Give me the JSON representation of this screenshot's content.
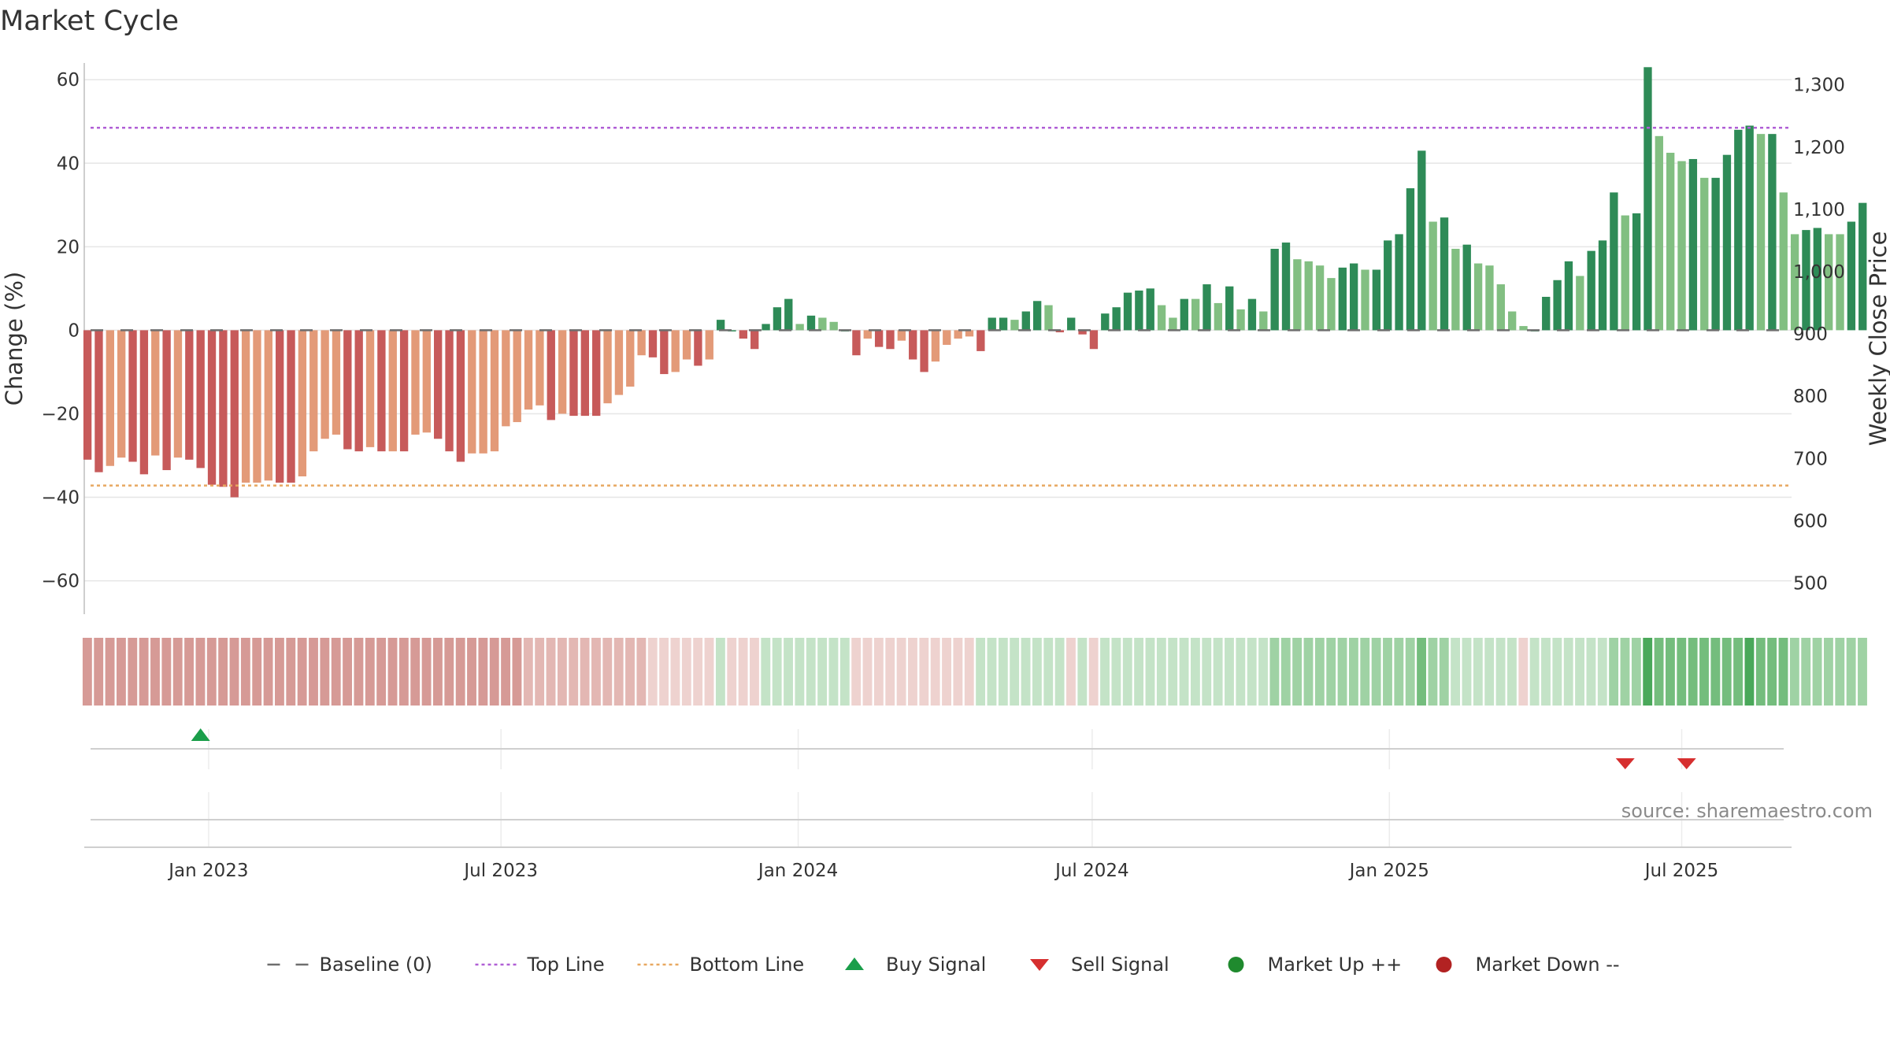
{
  "chart_data": {
    "type": "bar",
    "title": "Market Cycle",
    "ylabel": "Change (%)",
    "y2label": "Weekly Close Price",
    "ylim": [
      -68,
      64
    ],
    "yticks": [
      -60,
      -40,
      -20,
      0,
      20,
      40,
      60
    ],
    "yticks_text": [
      "−60",
      "−40",
      "−20",
      "0",
      "20",
      "40",
      "60"
    ],
    "y2lim": [
      450,
      1335
    ],
    "y2ticks": [
      500,
      600,
      700,
      800,
      900,
      1000,
      1100,
      1200,
      1300
    ],
    "y2ticks_text": [
      "500",
      "600",
      "700",
      "800",
      "900",
      "1,000",
      "1,100",
      "1,200",
      "1,300"
    ],
    "x_start": "2022-10-16",
    "x_end": "2025-09-07",
    "xticks": [
      {
        "date": "2023-01-01",
        "label": "Jan 2023"
      },
      {
        "date": "2023-07-01",
        "label": "Jul 2023"
      },
      {
        "date": "2024-01-01",
        "label": "Jan 2024"
      },
      {
        "date": "2024-07-01",
        "label": "Jul 2024"
      },
      {
        "date": "2025-01-01",
        "label": "Jan 2025"
      },
      {
        "date": "2025-07-01",
        "label": "Jul 2025"
      }
    ],
    "first_week": "2022-10-18",
    "week_step_days": 7,
    "top_line": 48.5,
    "bottom_line": -37.2,
    "baseline": 0,
    "values": [
      -31,
      -34,
      -32.5,
      -30.5,
      -31.5,
      -34.5,
      -30,
      -33.5,
      -30.5,
      -31,
      -33,
      -37,
      -37.5,
      -40,
      -36.5,
      -36.5,
      -36,
      -36.5,
      -36.5,
      -35,
      -29,
      -26,
      -25,
      -28.5,
      -29,
      -28,
      -29,
      -29,
      -29,
      -25,
      -24.5,
      -26,
      -29,
      -31.5,
      -29.5,
      -29.5,
      -29,
      -23,
      -22,
      -19,
      -18,
      -21.5,
      -20,
      -20.5,
      -20.5,
      -20.5,
      -17.5,
      -15.5,
      -13.5,
      -6,
      -6.5,
      -10.5,
      -10,
      -7,
      -8.5,
      -7,
      2.5,
      0,
      -2,
      -4.5,
      1.5,
      5.5,
      7.5,
      1.5,
      3.5,
      3,
      2,
      0,
      -6,
      -2,
      -4,
      -4.5,
      -2.5,
      -7,
      -10,
      -7.5,
      -3.5,
      -2,
      -1.5,
      -5,
      3,
      3,
      2.5,
      4.5,
      7,
      6,
      -0.5,
      3,
      -1,
      -4.5,
      4,
      5.5,
      9,
      9.5,
      10,
      6,
      3,
      7.5,
      7.5,
      11,
      6.5,
      10.5,
      5,
      7.5,
      4.5,
      19.5,
      21,
      17,
      16.5,
      15.5,
      12.5,
      15,
      16,
      14.5,
      14.5,
      21.5,
      23,
      34,
      43,
      26,
      27,
      19.5,
      20.5,
      16,
      15.5,
      11,
      4.5,
      1,
      0,
      8,
      12,
      16.5,
      13,
      19,
      21.5,
      33,
      27.5,
      28,
      63,
      46.5,
      42.5,
      40.5,
      41,
      36.5,
      36.5,
      42,
      48,
      49,
      47,
      47,
      33,
      23,
      24,
      24.5,
      23,
      23,
      26,
      30.5
    ],
    "bar_shades": [
      "d",
      "d",
      "l",
      "l",
      "d",
      "d",
      "l",
      "d",
      "l",
      "d",
      "d",
      "d",
      "d",
      "d",
      "l",
      "l",
      "l",
      "d",
      "d",
      "l",
      "l",
      "l",
      "l",
      "d",
      "d",
      "l",
      "d",
      "l",
      "d",
      "l",
      "l",
      "d",
      "d",
      "d",
      "l",
      "l",
      "l",
      "l",
      "l",
      "l",
      "l",
      "d",
      "l",
      "d",
      "d",
      "d",
      "l",
      "l",
      "l",
      "l",
      "d",
      "d",
      "l",
      "l",
      "d",
      "l",
      "d",
      "d",
      "d",
      "d",
      "d",
      "d",
      "d",
      "l",
      "d",
      "l",
      "l",
      "d",
      "d",
      "l",
      "d",
      "d",
      "l",
      "d",
      "d",
      "l",
      "l",
      "l",
      "l",
      "d",
      "d",
      "d",
      "l",
      "d",
      "d",
      "l",
      "d",
      "d",
      "d",
      "d",
      "d",
      "d",
      "d",
      "d",
      "d",
      "l",
      "l",
      "d",
      "l",
      "d",
      "l",
      "d",
      "l",
      "d",
      "l",
      "d",
      "d",
      "l",
      "l",
      "l",
      "l",
      "d",
      "d",
      "l",
      "d",
      "d",
      "d",
      "d",
      "d",
      "l",
      "d",
      "l",
      "d",
      "l",
      "l",
      "l",
      "l",
      "l",
      "d",
      "d",
      "d",
      "d",
      "l",
      "d",
      "d",
      "d",
      "l",
      "d",
      "d",
      "l",
      "l",
      "l",
      "d",
      "l",
      "d",
      "d",
      "d",
      "d",
      "l",
      "d",
      "l",
      "l",
      "d",
      "d",
      "l",
      "l",
      "d",
      "d"
    ],
    "band_levels": [
      -3,
      -3,
      -3,
      -3,
      -3,
      -3,
      -3,
      -3,
      -3,
      -3,
      -3,
      -3,
      -3,
      -3,
      -3,
      -3,
      -3,
      -3,
      -3,
      -3,
      -3,
      -3,
      -3,
      -3,
      -3,
      -3,
      -3,
      -3,
      -3,
      -3,
      -3,
      -3,
      -3,
      -3,
      -3,
      -3,
      -3,
      -3,
      -3,
      -2,
      -2,
      -2,
      -2,
      -2,
      -2,
      -2,
      -2,
      -2,
      -2,
      -2,
      -1,
      -1,
      -1,
      -1,
      -1,
      -1,
      1,
      -1,
      -1,
      -1,
      1,
      1,
      1,
      1,
      1,
      1,
      1,
      1,
      -1,
      -1,
      -1,
      -1,
      -1,
      -1,
      -1,
      -1,
      -1,
      -1,
      -1,
      1,
      1,
      1,
      1,
      1,
      1,
      1,
      1,
      -1,
      1,
      -1,
      1,
      1,
      1,
      1,
      1,
      1,
      1,
      1,
      1,
      1,
      1,
      1,
      1,
      1,
      1,
      2,
      2,
      2,
      2,
      2,
      2,
      2,
      2,
      2,
      2,
      2,
      2,
      2,
      3,
      2,
      2,
      1,
      1,
      1,
      1,
      1,
      1,
      -1,
      1,
      1,
      1,
      1,
      1,
      1,
      1,
      2,
      2,
      2,
      4,
      3,
      3,
      3,
      3,
      3,
      3,
      3,
      3,
      4,
      3,
      3,
      3,
      2,
      2,
      2,
      2,
      2,
      2,
      2
    ],
    "price_values": [],
    "buy_signals": [
      "2022-12-27"
    ],
    "sell_signals": [
      "2025-05-27",
      "2025-07-04"
    ],
    "market_up_marks": [],
    "market_down_marks": [],
    "colors": {
      "neg_dark": "#c75a5a",
      "neg_light": "#e39a78",
      "pos_dark": "#2e8b57",
      "pos_light": "#82bf82",
      "top_line": "#b05fd6",
      "bottom_line": "#e8a860",
      "baseline": "#6e6e6e",
      "buy": "#1a9e4a",
      "sell": "#d62f2f",
      "market_up": "#1f8a2e",
      "market_down": "#b22222",
      "band_neg3": "#d69a96",
      "band_neg2": "#e3b7b3",
      "band_neg1": "#eed2cf",
      "band_pos1": "#c4e3c7",
      "band_pos2": "#9fd2a4",
      "band_pos3": "#74bd7d",
      "band_pos4": "#4aa85a"
    },
    "legend": [
      {
        "key": "baseline",
        "label": "Baseline (0)",
        "marker": "dash"
      },
      {
        "key": "top",
        "label": "Top Line",
        "marker": "dotted"
      },
      {
        "key": "bottom",
        "label": "Bottom Line",
        "marker": "dotted"
      },
      {
        "key": "buy",
        "label": "Buy Signal",
        "marker": "triangle-up"
      },
      {
        "key": "sell",
        "label": "Sell Signal",
        "marker": "triangle-down"
      },
      {
        "key": "up",
        "label": "Market Up ++",
        "marker": "circle"
      },
      {
        "key": "down",
        "label": "Market Down --",
        "marker": "circle"
      }
    ],
    "legend_position": "bottom",
    "grid": true,
    "source": "source: sharemaestro.com"
  }
}
